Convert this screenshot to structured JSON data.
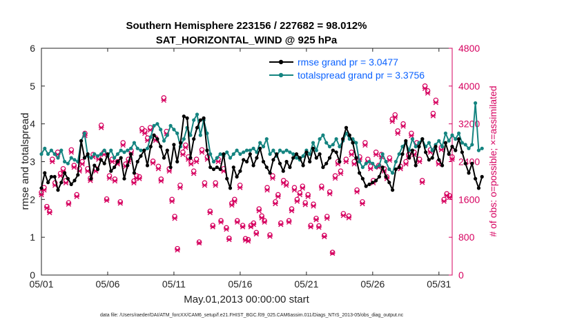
{
  "chart_data": {
    "type": "line",
    "title": "Southern Hemisphere 223156 / 227682 = 98.012%",
    "subtitle": "SAT_HORIZONTAL_WIND @ 925 hPa",
    "xlabel": "May.01,2013 00:00:00 start",
    "ylabel": "rmse and totalspread",
    "y2label": "# of obs: o=possible; ×=assimilated",
    "footnote": "data file: /Users/raeder/DAI/ATM_forcXX/CAM6_setup/f.e21.FHIST_BGC.f09_025.CAM6assim.011/Diags_NTrS_2013-05/obs_diag_output.nc",
    "x_ticks": [
      "05/01",
      "05/06",
      "05/11",
      "05/16",
      "05/21",
      "05/26",
      "05/31"
    ],
    "x_tick_days": [
      1,
      6,
      11,
      16,
      21,
      26,
      31
    ],
    "xlim": [
      1,
      32
    ],
    "ylim": [
      0,
      6
    ],
    "y_ticks": [
      "0",
      "1",
      "2",
      "3",
      "4",
      "5",
      "6"
    ],
    "y2lim": [
      0,
      4800
    ],
    "y2_ticks": [
      "0",
      "800",
      "1600",
      "2400",
      "3200",
      "4000",
      "4800"
    ],
    "legend_position": "top-right",
    "x_step_days": 0.25,
    "x_start_day": 1.0,
    "series": [
      {
        "name": "rmse grand pr = 3.0477",
        "color": "#000000",
        "marker": "circle",
        "values": [
          2.3,
          2.7,
          2.45,
          2.6,
          2.6,
          2.25,
          2.45,
          2.7,
          2.55,
          2.4,
          2.5,
          2.65,
          3.55,
          3.1,
          3.2,
          2.55,
          2.9,
          2.8,
          3.05,
          2.95,
          3.2,
          2.75,
          2.85,
          3.0,
          3.1,
          2.55,
          2.9,
          3.2,
          2.7,
          3.0,
          3.15,
          3.3,
          2.9,
          3.4,
          3.7,
          3.6,
          3.4,
          3.1,
          3.3,
          2.85,
          3.45,
          3.0,
          3.5,
          4.2,
          4.15,
          3.1,
          3.6,
          3.9,
          4.1,
          4.15,
          3.3,
          2.85,
          2.8,
          2.85,
          2.8,
          3.2,
          2.55,
          2.3,
          2.85,
          2.6,
          2.75,
          3.05,
          3.0,
          3.2,
          2.9,
          3.1,
          3.35,
          3.0,
          2.85,
          2.7,
          3.05,
          3.2,
          2.95,
          2.75,
          3.0,
          2.85,
          3.1,
          3.2,
          3.1,
          2.9,
          3.25,
          3.0,
          3.35,
          3.1,
          3.2,
          2.85,
          2.95,
          3.1,
          3.3,
          3.25,
          3.0,
          3.6,
          3.9,
          3.7,
          3.5,
          3.1,
          2.7,
          2.55,
          2.35,
          2.4,
          2.45,
          2.5,
          2.6,
          2.85,
          2.6,
          2.45,
          2.25,
          2.8,
          2.85,
          3.2,
          3.55,
          3.1,
          3.3,
          2.9,
          3.4,
          3.6,
          3.25,
          3.05,
          3.1,
          3.4,
          3.05,
          2.9,
          3.5,
          3.2,
          3.4,
          3.3,
          3.6,
          3.25,
          2.95,
          2.7,
          2.95,
          2.55,
          2.3,
          2.6
        ]
      },
      {
        "name": "totalspread grand pr = 3.3756",
        "color": "#148480",
        "marker": "circle",
        "values": [
          3.2,
          3.35,
          3.2,
          3.3,
          3.2,
          3.1,
          3.3,
          3.0,
          2.95,
          3.1,
          3.05,
          3.0,
          3.55,
          3.75,
          3.15,
          3.1,
          3.2,
          3.15,
          3.2,
          3.3,
          3.15,
          3.3,
          3.1,
          3.2,
          3.3,
          3.25,
          3.3,
          3.35,
          3.5,
          3.35,
          3.3,
          3.3,
          3.35,
          3.65,
          3.95,
          4.0,
          3.85,
          3.55,
          3.7,
          3.95,
          3.85,
          3.75,
          3.4,
          3.6,
          3.9,
          3.7,
          4.1,
          4.25,
          3.7,
          4.1,
          3.75,
          3.2,
          3.0,
          3.1,
          3.2,
          3.15,
          3.25,
          3.1,
          3.2,
          3.3,
          3.2,
          3.25,
          3.3,
          3.3,
          3.35,
          3.25,
          3.5,
          3.4,
          3.6,
          3.2,
          3.3,
          3.15,
          3.3,
          3.25,
          3.3,
          3.25,
          3.2,
          3.1,
          3.05,
          3.15,
          3.3,
          3.2,
          3.5,
          3.3,
          3.6,
          3.7,
          3.5,
          3.4,
          3.45,
          3.6,
          3.4,
          3.55,
          3.75,
          3.6,
          3.6,
          3.5,
          3.0,
          2.85,
          2.95,
          3.0,
          2.95,
          2.85,
          2.9,
          3.2,
          3.0,
          2.8,
          2.7,
          3.0,
          3.2,
          3.4,
          3.5,
          3.3,
          3.6,
          3.4,
          3.5,
          3.6,
          3.4,
          3.5,
          3.3,
          3.45,
          3.55,
          3.4,
          3.75,
          3.55,
          3.7,
          3.6,
          3.75,
          3.5,
          3.45,
          3.35,
          3.45,
          4.55,
          3.3,
          3.35
        ]
      }
    ],
    "obs_series": [
      {
        "name": "possible",
        "marker": "o",
        "color": "#d6005f",
        "axis": "right",
        "values": [
          1750,
          1850,
          1450,
          1350,
          2450,
          1950,
          2600,
          2150,
          2250,
          2000,
          1530,
          2650,
          2320,
          1700,
          2250,
          2400,
          3000,
          2250,
          2050,
          2550,
          2250,
          2500,
          3170,
          2600,
          1610,
          2100,
          2450,
          2030,
          2400,
          1550,
          2800,
          2350,
          2450,
          2630,
          1990,
          2100,
          2080,
          3100,
          3050,
          2900,
          3120,
          2410,
          2900,
          2300,
          2030,
          3750,
          3040,
          2250,
          1600,
          1240,
          560,
          1900,
          2600,
          2750,
          2500,
          2400,
          2200,
          2450,
          700,
          2650,
          1950,
          2500,
          1350,
          1050,
          1950,
          2450,
          1150,
          2250,
          1000,
          780,
          1520,
          1600,
          1150,
          1900,
          1050,
          770,
          750,
          1050,
          1100,
          900,
          1400,
          1250,
          1150,
          1850,
          850,
          2100,
          1550,
          1700,
          1100,
          2000,
          1950,
          1150,
          1400,
          1850,
          1600,
          1740,
          1880,
          1530,
          1700,
          1050,
          1500,
          1200,
          1040,
          1880,
          840,
          1240,
          1760,
          480,
          2100,
          2400,
          2200,
          1300,
          2450,
          1250,
          2600,
          2400,
          1800,
          2500,
          1550,
          2800,
          2450,
          2300,
          2000,
          2600,
          2320,
          2550,
          2250,
          2080,
          2480,
          3300,
          3390,
          3050,
          2300,
          3200,
          2400,
          2550,
          3000,
          2600,
          2800,
          2450,
          2000,
          4000,
          3900,
          2650,
          3420,
          3700,
          2400,
          2700,
          1600,
          1720,
          1680,
          2500
        ]
      },
      {
        "name": "assimilated",
        "marker": "x",
        "color": "#d6005f",
        "axis": "right",
        "values": [
          1700,
          1800,
          1420,
          1320,
          2400,
          1900,
          2550,
          2100,
          2200,
          1950,
          1500,
          2600,
          2280,
          1660,
          2200,
          2350,
          2950,
          2200,
          2000,
          2500,
          2200,
          2450,
          3120,
          2550,
          1580,
          2050,
          2400,
          1990,
          2350,
          1520,
          2750,
          2300,
          2400,
          2580,
          1950,
          2050,
          2040,
          3050,
          3000,
          2850,
          3070,
          2370,
          2850,
          2250,
          1990,
          3700,
          2990,
          2200,
          1560,
          1200,
          530,
          1850,
          2550,
          2700,
          2450,
          2350,
          2150,
          2400,
          680,
          2600,
          1900,
          2450,
          1320,
          1020,
          1900,
          2400,
          1120,
          2200,
          970,
          750,
          1480,
          1560,
          1120,
          1850,
          1020,
          740,
          720,
          1020,
          1070,
          870,
          1360,
          1210,
          1120,
          1800,
          820,
          2050,
          1510,
          1660,
          1070,
          1950,
          1900,
          1120,
          1360,
          1800,
          1560,
          1700,
          1840,
          1490,
          1660,
          1020,
          1460,
          1170,
          1010,
          1840,
          810,
          1200,
          1720,
          460,
          2050,
          2350,
          2150,
          1260,
          2400,
          1210,
          2550,
          2350,
          1760,
          2450,
          1510,
          2750,
          2400,
          2250,
          1950,
          2550,
          2280,
          2500,
          2200,
          2040,
          2430,
          3250,
          3340,
          3000,
          2250,
          3150,
          2350,
          2500,
          2950,
          2550,
          2750,
          2400,
          1960,
          3950,
          3850,
          2600,
          3370,
          3650,
          2350,
          2650,
          1560,
          1680,
          1640,
          2450
        ]
      }
    ]
  }
}
